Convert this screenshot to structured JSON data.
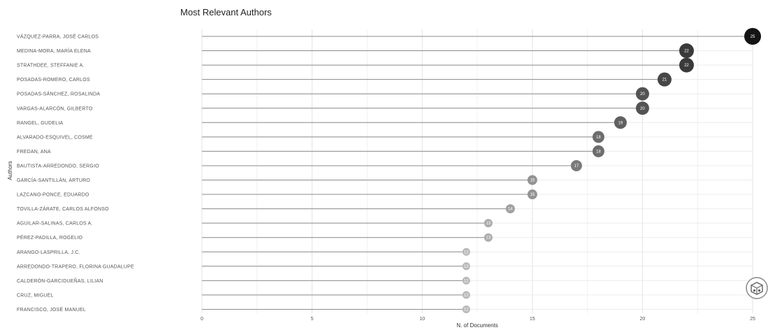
{
  "chart_data": {
    "type": "lollipop",
    "title": "Most Relevant Authors",
    "xlabel": "N. of Documents",
    "ylabel": "Authors",
    "xlim": [
      0,
      25
    ],
    "xticks": [
      "0",
      "5",
      "10",
      "15",
      "20",
      "25"
    ],
    "grid": true,
    "categories": [
      "VÁZQUEZ-PARRA, JOSÉ CARLOS",
      "MEDINA-MORA, MARÍA ELENA",
      "STRATHDEE, STEFFANIE A.",
      "POSADAS-ROMERO, CARLOS",
      "POSADAS-SÁNCHEZ, ROSALINDA",
      "VARGAS-ALARCÓN, GILBERTO",
      "RANGEL, GUDELIA",
      "ALVARADO-ESQUIVEL, COSME",
      "FREDAN, ANA",
      "BAUTISTA-ARREDONDO, SERGIO",
      "GARCÍA-SANTILLÁN, ARTURO",
      "LAZCANO-PONCE, EDUARDO",
      "TOVILLA-ZÁRATE, CARLOS ALFONSO",
      "AGUILAR-SALINAS, CARLOS A.",
      "PÉREZ-PADILLA, ROGELIO",
      "ARANGO-LASPRILLA, J.C.",
      "ARREDONDO-TRAPERO, FLORINA GUADALUPE",
      "CALDERÓN-GARCIDUEÑAS, LILIAN",
      "CRUZ, MIGUEL",
      "FRANCISCO, JOSÉ MANUEL"
    ],
    "values": [
      25,
      22,
      22,
      21,
      20,
      20,
      19,
      18,
      18,
      17,
      15,
      15,
      14,
      13,
      13,
      12,
      12,
      12,
      12,
      12
    ],
    "value_labels": [
      "25",
      "22",
      "22",
      "21",
      "20",
      "20",
      "19",
      "18",
      "18",
      "17",
      "15",
      "15",
      "14",
      "13",
      "13",
      "12",
      "12",
      "12",
      "12",
      "12"
    ]
  },
  "logo_icon": "bibliometrix-logo-icon"
}
